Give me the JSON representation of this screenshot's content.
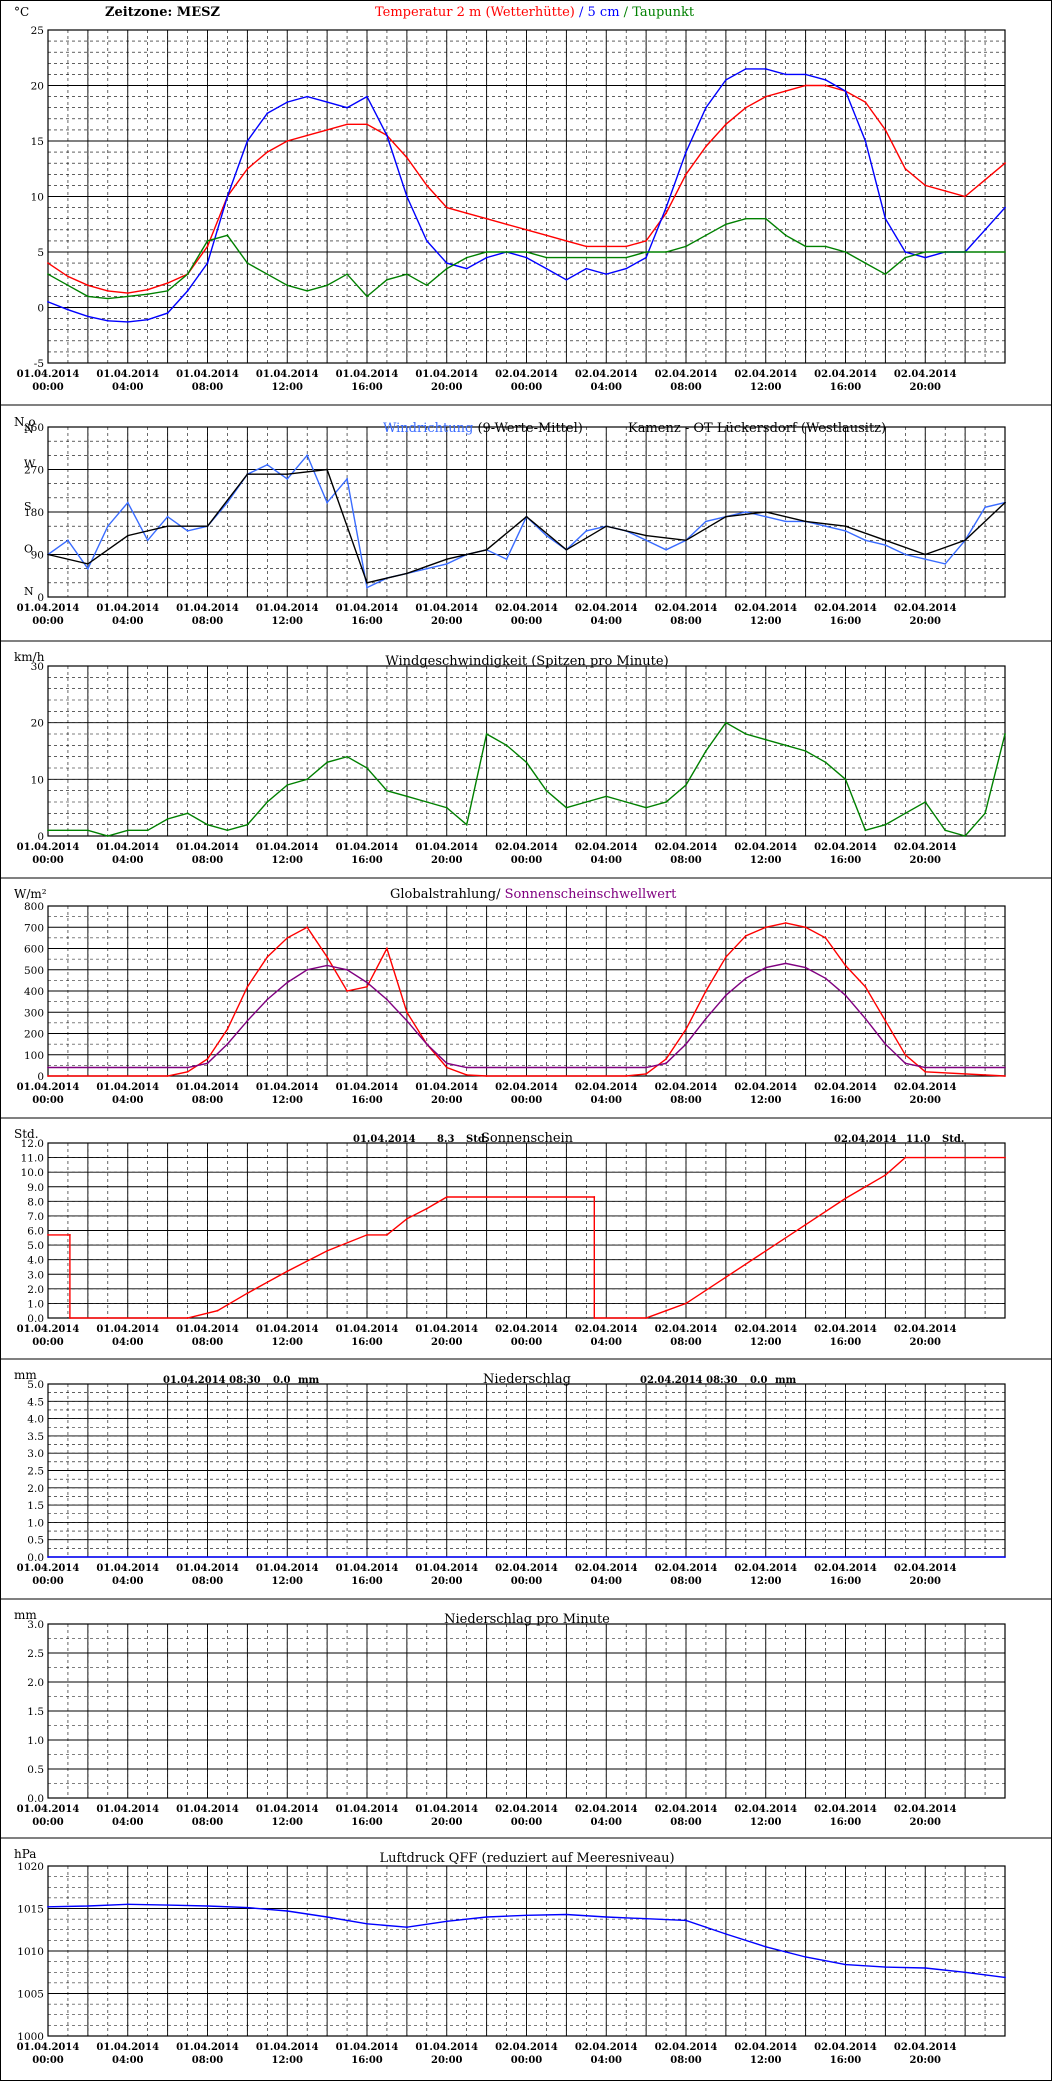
{
  "x_ticks": [
    {
      "date": "01.04.2014",
      "time": "00:00"
    },
    {
      "date": "01.04.2014",
      "time": "04:00"
    },
    {
      "date": "01.04.2014",
      "time": "08:00"
    },
    {
      "date": "01.04.2014",
      "time": "12:00"
    },
    {
      "date": "01.04.2014",
      "time": "16:00"
    },
    {
      "date": "01.04.2014",
      "time": "20:00"
    },
    {
      "date": "02.04.2014",
      "time": "00:00"
    },
    {
      "date": "02.04.2014",
      "time": "04:00"
    },
    {
      "date": "02.04.2014",
      "time": "08:00"
    },
    {
      "date": "02.04.2014",
      "time": "12:00"
    },
    {
      "date": "02.04.2014",
      "time": "16:00"
    },
    {
      "date": "02.04.2014",
      "time": "20:00"
    }
  ],
  "colors": {
    "red": "#ff0000",
    "blue": "#0000ff",
    "green": "#008000",
    "purple": "#800080",
    "wind_dir_blue": "#3a6cff",
    "dark": "#000000"
  },
  "chart_data": [
    {
      "type": "line",
      "unit_label": "°C",
      "timezone_text": "Zeitzone: MESZ",
      "title_parts": [
        {
          "text": "Temperatur 2 m (Wetterhütte)",
          "color": "#ff0000"
        },
        {
          "text": "  /  ",
          "color": "#0000ff"
        },
        {
          "text": "5 cm",
          "color": "#0000ff"
        },
        {
          "text": " / ",
          "color": "#008000"
        },
        {
          "text": "Taupunkt",
          "color": "#008000"
        }
      ],
      "ylim": [
        -5,
        25
      ],
      "y_ticks": [
        "-5",
        "0",
        "5",
        "10",
        "15",
        "20",
        "25"
      ],
      "series": [
        {
          "name": "Temperatur 2 m (Wetterhütte)",
          "color": "#ff0000",
          "x": [
            0,
            1,
            2,
            3,
            4,
            5,
            6,
            7,
            8,
            9,
            10,
            11,
            12,
            13,
            14,
            15,
            16,
            17,
            18,
            19,
            20,
            21,
            22,
            23,
            24,
            25,
            26,
            27,
            28,
            29,
            30,
            31,
            32,
            33,
            34,
            35,
            36,
            37,
            38,
            39,
            40,
            41,
            42,
            43,
            44,
            45,
            46,
            47,
            48
          ],
          "values": [
            4.0,
            2.8,
            2.0,
            1.5,
            1.3,
            1.6,
            2.2,
            3.0,
            5.5,
            10.0,
            12.5,
            14.0,
            15.0,
            15.5,
            16.0,
            16.5,
            16.5,
            15.5,
            13.5,
            11.0,
            9.0,
            8.5,
            8.0,
            7.5,
            7.0,
            6.5,
            6.0,
            5.5,
            5.5,
            5.5,
            6.0,
            8.5,
            12.0,
            14.5,
            16.5,
            18.0,
            19.0,
            19.5,
            20.0,
            20.0,
            19.5,
            18.5,
            16.0,
            12.5,
            11.0,
            10.5,
            10.0,
            11.5,
            13.0
          ]
        },
        {
          "name": "5 cm",
          "color": "#0000ff",
          "x": [
            0,
            1,
            2,
            3,
            4,
            5,
            6,
            7,
            8,
            9,
            10,
            11,
            12,
            13,
            14,
            15,
            16,
            17,
            18,
            19,
            20,
            21,
            22,
            23,
            24,
            25,
            26,
            27,
            28,
            29,
            30,
            31,
            32,
            33,
            34,
            35,
            36,
            37,
            38,
            39,
            40,
            41,
            42,
            43,
            44,
            45,
            46,
            47,
            48
          ],
          "values": [
            0.5,
            -0.2,
            -0.8,
            -1.2,
            -1.3,
            -1.1,
            -0.5,
            1.5,
            4.0,
            10.0,
            15.0,
            17.5,
            18.5,
            19.0,
            18.5,
            18.0,
            19.0,
            15.5,
            10.0,
            6.0,
            4.0,
            3.5,
            4.5,
            5.0,
            4.5,
            3.5,
            2.5,
            3.5,
            3.0,
            3.5,
            4.5,
            9.0,
            14.0,
            18.0,
            20.5,
            21.5,
            21.5,
            21.0,
            21.0,
            20.5,
            19.5,
            15.0,
            8.0,
            5.0,
            4.5,
            5.0,
            5.0,
            7.0,
            9.0
          ]
        },
        {
          "name": "Taupunkt",
          "color": "#008000",
          "x": [
            0,
            1,
            2,
            3,
            4,
            5,
            6,
            7,
            8,
            9,
            10,
            11,
            12,
            13,
            14,
            15,
            16,
            17,
            18,
            19,
            20,
            21,
            22,
            23,
            24,
            25,
            26,
            27,
            28,
            29,
            30,
            31,
            32,
            33,
            34,
            35,
            36,
            37,
            38,
            39,
            40,
            41,
            42,
            43,
            44,
            45,
            46,
            47,
            48
          ],
          "values": [
            3.0,
            2.0,
            1.0,
            0.8,
            1.0,
            1.2,
            1.5,
            3.0,
            6.0,
            6.5,
            4.0,
            3.0,
            2.0,
            1.5,
            2.0,
            3.0,
            1.0,
            2.5,
            3.0,
            2.0,
            3.5,
            4.5,
            5.0,
            5.0,
            5.0,
            4.5,
            4.5,
            4.5,
            4.5,
            4.5,
            5.0,
            5.0,
            5.5,
            6.5,
            7.5,
            8.0,
            8.0,
            6.5,
            5.5,
            5.5,
            5.0,
            4.0,
            3.0,
            4.5,
            5.0,
            5.0,
            5.0,
            5.0,
            5.0
          ]
        }
      ]
    },
    {
      "type": "line",
      "unit_label": "N o",
      "title_parts": [
        {
          "text": "Windrichtung",
          "color": "#3a6cff"
        },
        {
          "text": " (9-Werte-Mittel)",
          "color": "#000000"
        }
      ],
      "right_title": "Kamenz - OT Lückersdorf (Westlausitz)",
      "ylim": [
        0,
        360
      ],
      "y_ticks": [
        "0",
        "90",
        "180",
        "270",
        "360"
      ],
      "y_side_labels": [
        {
          "text": "N",
          "value": 360
        },
        {
          "text": "W",
          "value": 270
        },
        {
          "text": "S",
          "value": 180
        },
        {
          "text": "O",
          "value": 90
        },
        {
          "text": "N",
          "value": 0
        }
      ],
      "series": [
        {
          "name": "Windrichtung",
          "color": "#3a6cff",
          "x": [
            0,
            1,
            2,
            3,
            4,
            5,
            6,
            7,
            8,
            9,
            10,
            11,
            12,
            13,
            14,
            15,
            16,
            17,
            18,
            19,
            20,
            21,
            22,
            23,
            24,
            25,
            26,
            27,
            28,
            29,
            30,
            31,
            32,
            33,
            34,
            35,
            36,
            37,
            38,
            39,
            40,
            41,
            42,
            43,
            44,
            45,
            46,
            47,
            48
          ],
          "values": [
            90,
            120,
            60,
            150,
            200,
            120,
            170,
            140,
            150,
            200,
            260,
            280,
            250,
            300,
            200,
            250,
            20,
            40,
            50,
            60,
            70,
            90,
            100,
            80,
            170,
            130,
            100,
            140,
            150,
            140,
            120,
            100,
            120,
            160,
            170,
            180,
            170,
            160,
            160,
            150,
            140,
            120,
            110,
            90,
            80,
            70,
            120,
            190,
            200
          ]
        },
        {
          "name": "9-Werte-Mittel",
          "color": "#000000",
          "x": [
            0,
            2,
            4,
            6,
            8,
            10,
            12,
            14,
            16,
            18,
            20,
            22,
            24,
            26,
            28,
            30,
            32,
            34,
            36,
            38,
            40,
            42,
            44,
            46,
            48
          ],
          "values": [
            90,
            70,
            130,
            150,
            150,
            260,
            260,
            270,
            30,
            50,
            80,
            100,
            170,
            100,
            150,
            130,
            120,
            170,
            180,
            160,
            150,
            120,
            90,
            120,
            200
          ]
        }
      ]
    },
    {
      "type": "line",
      "unit_label": "km/h",
      "title": "Windgeschwindigkeit (Spitzen pro Minute)",
      "ylim": [
        0,
        30
      ],
      "y_ticks": [
        "0",
        "10",
        "20",
        "30"
      ],
      "series": [
        {
          "name": "Windgeschwindigkeit",
          "color": "#008000",
          "x": [
            0,
            1,
            2,
            3,
            4,
            5,
            6,
            7,
            8,
            9,
            10,
            11,
            12,
            13,
            14,
            15,
            16,
            17,
            18,
            19,
            20,
            21,
            22,
            23,
            24,
            25,
            26,
            27,
            28,
            29,
            30,
            31,
            32,
            33,
            34,
            35,
            36,
            37,
            38,
            39,
            40,
            41,
            42,
            43,
            44,
            45,
            46,
            47,
            48
          ],
          "values": [
            1,
            1,
            1,
            0,
            1,
            1,
            3,
            4,
            2,
            1,
            2,
            6,
            9,
            10,
            13,
            14,
            12,
            8,
            7,
            6,
            5,
            2,
            18,
            16,
            13,
            8,
            5,
            6,
            7,
            6,
            5,
            6,
            9,
            15,
            20,
            18,
            17,
            16,
            15,
            13,
            10,
            1,
            2,
            4,
            6,
            1,
            0,
            4,
            18
          ]
        }
      ]
    },
    {
      "type": "line",
      "unit_label": "W/m²",
      "title_parts": [
        {
          "text": "Globalstrahlung",
          "color": "#000000"
        },
        {
          "text": "/ ",
          "color": "#000000"
        },
        {
          "text": "Sonnenscheinschwellwert",
          "color": "#800080"
        }
      ],
      "ylim": [
        0,
        800
      ],
      "y_ticks": [
        "0",
        "100",
        "200",
        "300",
        "400",
        "500",
        "600",
        "700",
        "800"
      ],
      "series": [
        {
          "name": "Globalstrahlung",
          "color": "#ff0000",
          "x": [
            0,
            6,
            7,
            8,
            9,
            10,
            11,
            12,
            13,
            14,
            15,
            16,
            17,
            18,
            19,
            20,
            21,
            22,
            29,
            30,
            31,
            32,
            33,
            34,
            35,
            36,
            37,
            38,
            39,
            40,
            41,
            42,
            43,
            44,
            48
          ],
          "values": [
            0,
            0,
            20,
            80,
            220,
            420,
            560,
            650,
            700,
            560,
            400,
            420,
            600,
            300,
            150,
            40,
            5,
            0,
            0,
            10,
            80,
            220,
            400,
            560,
            660,
            700,
            720,
            700,
            650,
            520,
            420,
            260,
            100,
            20,
            0
          ]
        },
        {
          "name": "Sonnenscheinschwellwert",
          "color": "#800080",
          "x": [
            0,
            6,
            7,
            8,
            9,
            10,
            11,
            12,
            13,
            14,
            15,
            16,
            17,
            18,
            19,
            20,
            21,
            22,
            29,
            30,
            31,
            32,
            33,
            34,
            35,
            36,
            37,
            38,
            39,
            40,
            41,
            42,
            43,
            44,
            48
          ],
          "values": [
            40,
            40,
            40,
            60,
            150,
            260,
            360,
            440,
            500,
            520,
            500,
            440,
            360,
            260,
            150,
            60,
            40,
            40,
            40,
            40,
            60,
            150,
            270,
            380,
            460,
            510,
            530,
            510,
            460,
            380,
            270,
            150,
            60,
            40,
            40
          ]
        }
      ]
    },
    {
      "type": "line",
      "unit_label": "Std.",
      "title": "Sonnenschein",
      "day1_label": {
        "date": "01.04.2014",
        "value": "8.3",
        "unit": "Std."
      },
      "day2_label": {
        "date": "02.04.2014",
        "value": "11.0",
        "unit": "Std."
      },
      "ylim": [
        0,
        12
      ],
      "y_ticks": [
        "0.0",
        "1.0",
        "2.0",
        "3.0",
        "4.0",
        "5.0",
        "6.0",
        "7.0",
        "8.0",
        "9.0",
        "10.0",
        "11.0",
        "12.0"
      ],
      "series": [
        {
          "name": "Sonnenschein",
          "color": "#ff0000",
          "x": [
            0,
            1.1,
            1.1,
            7.0,
            8.5,
            10,
            12,
            14,
            16,
            17,
            18,
            19,
            20,
            22,
            24,
            26,
            27.4,
            27.4,
            30,
            31,
            32,
            34,
            36,
            38,
            40,
            42,
            43,
            48
          ],
          "values": [
            5.7,
            5.7,
            0,
            0,
            0.5,
            1.7,
            3.2,
            4.6,
            5.7,
            5.7,
            6.8,
            7.5,
            8.3,
            8.3,
            8.3,
            8.3,
            8.3,
            0,
            0,
            0.5,
            1.0,
            2.8,
            4.6,
            6.4,
            8.2,
            9.8,
            11.0,
            11.0
          ]
        }
      ]
    },
    {
      "type": "line",
      "unit_label": "mm",
      "title": "Niederschlag",
      "day1_label": {
        "date": "01.04.2014 08:30",
        "value": "0.0",
        "unit": "mm"
      },
      "day2_label": {
        "date": "02.04.2014 08:30",
        "value": "0.0",
        "unit": "mm"
      },
      "ylim": [
        0,
        5
      ],
      "y_ticks": [
        "0.0",
        "0.5",
        "1.0",
        "1.5",
        "2.0",
        "2.5",
        "3.0",
        "3.5",
        "4.0",
        "4.5",
        "5.0"
      ],
      "series": [
        {
          "name": "Niederschlag",
          "color": "#0000ff",
          "x": [
            0,
            48
          ],
          "values": [
            0,
            0
          ]
        }
      ]
    },
    {
      "type": "line",
      "unit_label": "mm",
      "title": "Niederschlag pro Minute",
      "ylim": [
        0,
        3
      ],
      "y_ticks": [
        "0.0",
        "0.5",
        "1.0",
        "1.5",
        "2.0",
        "2.5",
        "3.0"
      ],
      "series": []
    },
    {
      "type": "line",
      "unit_label": "hPa",
      "title": "Luftdruck QFF (reduziert auf Meeresniveau)",
      "ylim": [
        1000,
        1020
      ],
      "y_ticks": [
        "1000",
        "1005",
        "1010",
        "1015",
        "1020"
      ],
      "series": [
        {
          "name": "Luftdruck QFF",
          "color": "#0000ff",
          "x": [
            0,
            2,
            4,
            6,
            8,
            10,
            12,
            14,
            16,
            18,
            20,
            22,
            24,
            26,
            28,
            30,
            32,
            34,
            36,
            38,
            40,
            42,
            44,
            46,
            48
          ],
          "values": [
            1015.2,
            1015.3,
            1015.5,
            1015.4,
            1015.3,
            1015.1,
            1014.7,
            1014.0,
            1013.2,
            1012.8,
            1013.5,
            1014.0,
            1014.2,
            1014.3,
            1014.0,
            1013.8,
            1013.6,
            1012.0,
            1010.5,
            1009.3,
            1008.4,
            1008.1,
            1008.0,
            1007.5,
            1006.9
          ]
        }
      ]
    }
  ]
}
